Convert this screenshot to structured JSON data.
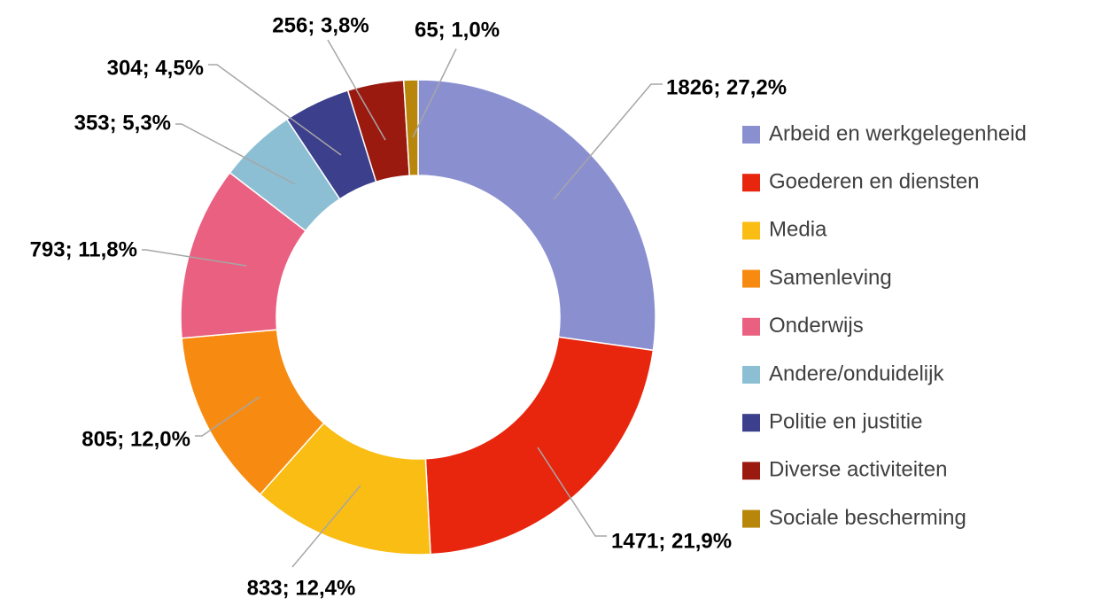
{
  "chart_data": {
    "type": "donut",
    "categories": [
      "Arbeid en werkgelegenheid",
      "Goederen en diensten",
      "Media",
      "Samenleving",
      "Onderwijs",
      "Andere/onduidelijk",
      "Politie en justitie",
      "Diverse activiteiten",
      "Sociale bescherming"
    ],
    "values": [
      1826,
      1471,
      833,
      805,
      793,
      353,
      304,
      256,
      65
    ],
    "value_labels": [
      "1826; 27,2%",
      "1471; 21,9%",
      "833; 12,4%",
      "805; 12,0%",
      "793; 11,8%",
      "353; 5,3%",
      "304; 4,5%",
      "256; 3,8%",
      "65; 1,0%"
    ],
    "colors": [
      "#8a8fd0",
      "#e8260e",
      "#f9bd14",
      "#f78b12",
      "#ea6080",
      "#8cbfd4",
      "#3b3f8c",
      "#9a1a10",
      "#b8860b"
    ],
    "legend": "right"
  }
}
